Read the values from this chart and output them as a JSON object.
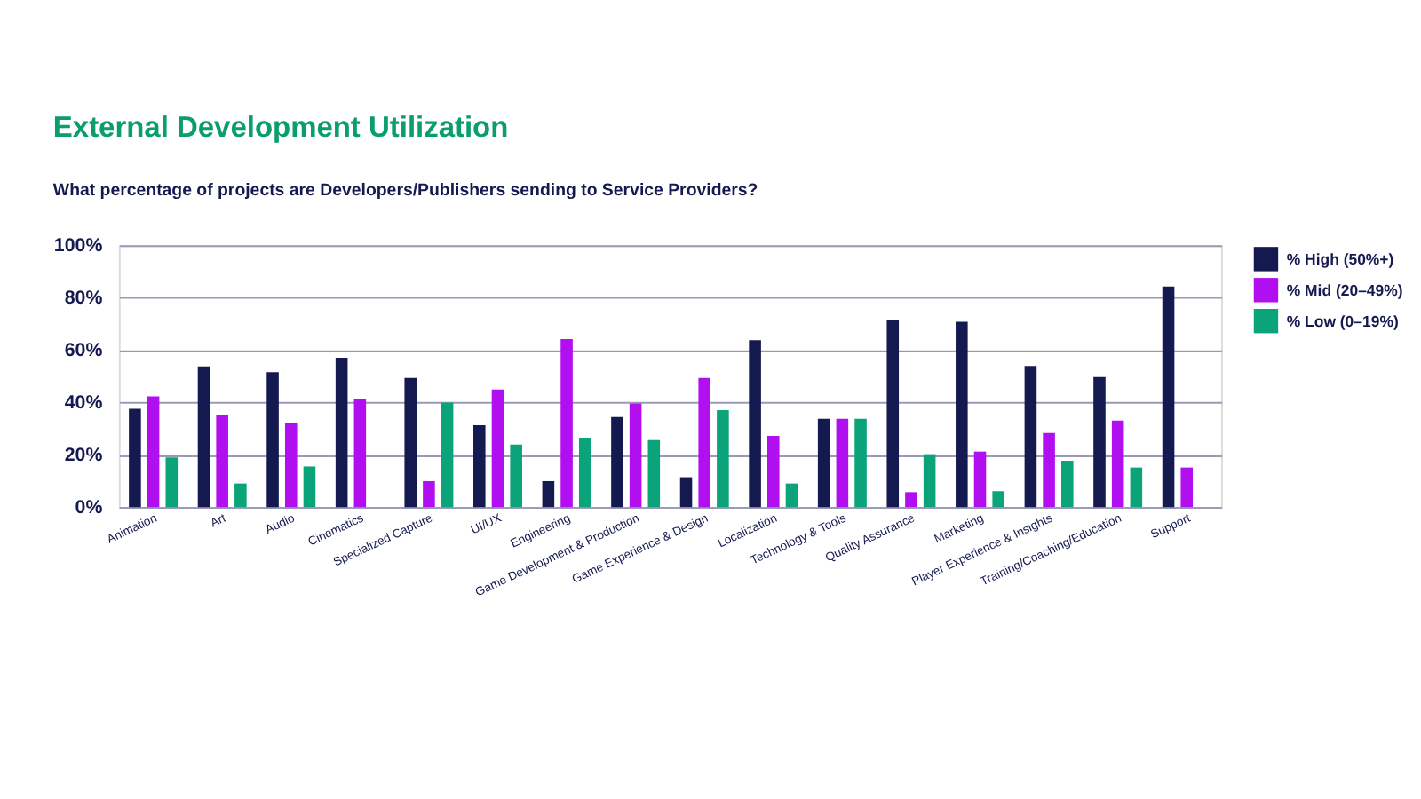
{
  "chart_data": {
    "type": "bar",
    "title": "External Development Utilization",
    "subtitle": "What percentage of projects are Developers/Publishers sending to Service Providers?",
    "categories": [
      "Animation",
      "Art",
      "Audio",
      "Cinematics",
      "Specialized Capture",
      "UI/UX",
      "Engineering",
      "Game Development & Production",
      "Game Experience & Design",
      "Localization",
      "Technology & Tools",
      "Quality Assurance",
      "Marketing",
      "Player Experience & Insights",
      "Training/Coaching/Education",
      "Support"
    ],
    "series": [
      {
        "name": "% High (50%+)",
        "color": "#14194f",
        "values": [
          37.5,
          53.7,
          51.5,
          57,
          49.3,
          31.3,
          9.9,
          34.4,
          11.4,
          63.7,
          33.7,
          71.6,
          70.8,
          53.9,
          49.7,
          84.3
        ]
      },
      {
        "name": "% Mid (20–49%)",
        "color": "#b20ff0",
        "values": [
          42.3,
          35.3,
          32,
          41.4,
          9.9,
          44.9,
          64.2,
          39.6,
          49.3,
          27.2,
          33.7,
          5.7,
          21.2,
          28.3,
          33,
          15.1
        ]
      },
      {
        "name": "% Low (0–19%)",
        "color": "#0aa37a",
        "values": [
          19,
          9,
          15.5,
          null,
          39.9,
          23.9,
          26.5,
          25.6,
          37,
          9,
          33.7,
          20.2,
          6.1,
          17.7,
          15.1,
          null
        ]
      }
    ],
    "ylim": [
      0,
      100
    ],
    "yticks": [
      {
        "value": 0,
        "label": "0%"
      },
      {
        "value": 20,
        "label": "20%"
      },
      {
        "value": 40,
        "label": "40%"
      },
      {
        "value": 60,
        "label": "60%"
      },
      {
        "value": 80,
        "label": "80%"
      },
      {
        "value": 100,
        "label": "100%"
      }
    ],
    "grid": "y",
    "legend": "top right"
  }
}
